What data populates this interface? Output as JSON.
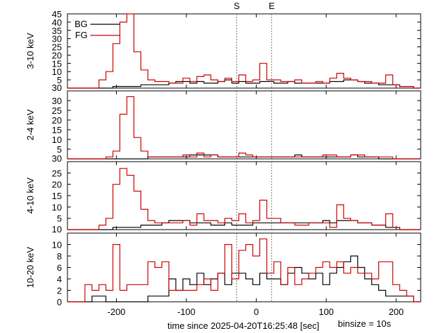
{
  "chart_data": {
    "type": "line",
    "step": true,
    "xlabel": "time since 2025-04-20T16:25:48 [sec]",
    "binsize_label": "binsize = 10s",
    "xlim": [
      -270,
      235
    ],
    "xticks": [
      -200,
      -100,
      0,
      100,
      200
    ],
    "xtick_labels": [
      "-200",
      "-100",
      "0",
      "100",
      "200"
    ],
    "markers": [
      {
        "label": "S",
        "x": -28
      },
      {
        "label": "E",
        "x": 22
      }
    ],
    "bins": [
      -240,
      -230,
      -220,
      -210,
      -200,
      -190,
      -180,
      -170,
      -160,
      -150,
      -140,
      -130,
      -120,
      -110,
      -100,
      -90,
      -80,
      -70,
      -60,
      -50,
      -40,
      -30,
      -20,
      -10,
      0,
      10,
      20,
      30,
      40,
      50,
      60,
      70,
      80,
      90,
      100,
      110,
      120,
      130,
      140,
      150,
      160,
      170,
      180,
      190,
      200,
      210,
      220,
      230
    ],
    "legend": [
      "BG",
      "FG"
    ],
    "colors": {
      "BG": "#000000",
      "FG": "#cc0000"
    },
    "panels": [
      {
        "ylabel": "3-10 keV",
        "ylim": [
          0,
          45
        ],
        "yticks": [
          5,
          10,
          15,
          20,
          25,
          30,
          35,
          40,
          45
        ],
        "ytick_labels": [
          "5",
          "10",
          "15",
          "20",
          "25",
          "30",
          "35",
          "40",
          "45"
        ],
        "bottom_label": "30",
        "show_legend": true,
        "series": [
          {
            "name": "BG",
            "values": [
              0,
              0,
              0,
              0,
              1,
              1,
              1,
              1,
              2,
              2,
              2,
              2,
              3,
              4,
              4,
              3,
              4,
              3,
              3,
              4,
              5,
              3,
              4,
              3,
              3,
              4,
              4,
              3,
              3,
              4,
              3,
              3,
              3,
              3,
              3,
              4,
              4,
              5,
              5,
              4,
              3,
              3,
              2,
              2,
              2,
              1,
              1,
              0
            ]
          },
          {
            "name": "FG",
            "values": [
              0,
              0,
              5,
              10,
              27,
              40,
              48,
              22,
              11,
              5,
              4,
              4,
              3,
              3,
              6,
              4,
              7,
              8,
              5,
              4,
              6,
              4,
              8,
              4,
              5,
              15,
              5,
              5,
              4,
              4,
              5,
              3,
              3,
              4,
              3,
              6,
              9,
              6,
              5,
              4,
              4,
              3,
              3,
              8,
              2,
              1,
              1,
              0
            ]
          }
        ]
      },
      {
        "ylabel": "2-4 keV",
        "ylim": [
          0,
          35
        ],
        "yticks": [
          5,
          10,
          15,
          20,
          25,
          30
        ],
        "ytick_labels": [
          "5",
          "10",
          "15",
          "20",
          "25",
          "30"
        ],
        "bottom_label": "30",
        "show_legend": false,
        "series": [
          {
            "name": "BG",
            "values": [
              0,
              0,
              0,
              0,
              0,
              0,
              0,
              0,
              0,
              1,
              1,
              1,
              1,
              1,
              1,
              2,
              2,
              2,
              2,
              1,
              1,
              1,
              1,
              1,
              1,
              1,
              1,
              1,
              1,
              1,
              2,
              1,
              1,
              1,
              1,
              1,
              1,
              1,
              2,
              1,
              1,
              1,
              0,
              0,
              0,
              0,
              0,
              0
            ]
          },
          {
            "name": "FG",
            "values": [
              0,
              0,
              0,
              1,
              4,
              23,
              32,
              11,
              4,
              1,
              1,
              1,
              1,
              1,
              2,
              1,
              3,
              1,
              2,
              1,
              1,
              1,
              3,
              2,
              1,
              1,
              1,
              1,
              1,
              1,
              1,
              1,
              1,
              1,
              2,
              2,
              1,
              1,
              2,
              2,
              1,
              1,
              1,
              1,
              0,
              0,
              0,
              0
            ]
          }
        ]
      },
      {
        "ylabel": "4-10 keV",
        "ylim": [
          0,
          30
        ],
        "yticks": [
          5,
          10,
          15,
          20,
          25
        ],
        "ytick_labels": [
          "5",
          "10",
          "15",
          "20",
          "25"
        ],
        "bottom_label": "10",
        "show_legend": false,
        "series": [
          {
            "name": "BG",
            "values": [
              0,
              0,
              0,
              0,
              1,
              1,
              1,
              1,
              2,
              2,
              2,
              3,
              4,
              4,
              4,
              3,
              3,
              3,
              2,
              2,
              3,
              2,
              2,
              2,
              3,
              3,
              3,
              3,
              3,
              3,
              3,
              3,
              3,
              3,
              4,
              3,
              4,
              4,
              4,
              3,
              3,
              2,
              2,
              1,
              1,
              0,
              0,
              0
            ]
          },
          {
            "name": "FG",
            "values": [
              0,
              0,
              2,
              5,
              20,
              27,
              24,
              17,
              9,
              4,
              3,
              3,
              3,
              3,
              4,
              2,
              7,
              4,
              4,
              3,
              5,
              4,
              7,
              3,
              4,
              13,
              5,
              5,
              3,
              3,
              2,
              2,
              3,
              3,
              3,
              1,
              11,
              5,
              4,
              3,
              3,
              2,
              2,
              7,
              1,
              0,
              0,
              0
            ]
          }
        ]
      },
      {
        "ylabel": "10-20 keV",
        "ylim": [
          0,
          12
        ],
        "yticks": [
          0,
          2,
          4,
          6,
          8,
          10
        ],
        "ytick_labels": [
          "0",
          "2",
          "4",
          "6",
          "8",
          "10"
        ],
        "bottom_label": "",
        "show_legend": false,
        "series": [
          {
            "name": "BG",
            "values": [
              0,
              1,
              1,
              0,
              0,
              0,
              0,
              0,
              0,
              1,
              1,
              1,
              4,
              2,
              4,
              3,
              5,
              3,
              4,
              5,
              3,
              5,
              5,
              4,
              3,
              5,
              4,
              4,
              3,
              5,
              6,
              5,
              4,
              5,
              3,
              5,
              6,
              7,
              8,
              6,
              4,
              3,
              2,
              1,
              1,
              1,
              1,
              0
            ]
          },
          {
            "name": "FG",
            "values": [
              3,
              2,
              3,
              2,
              10,
              2,
              3,
              3,
              3,
              7,
              6,
              7,
              2,
              2,
              2,
              2,
              3,
              4,
              2,
              5,
              10,
              4,
              9,
              10,
              8,
              11,
              5,
              7,
              3,
              6,
              3,
              4,
              5,
              6,
              7,
              6,
              7,
              5,
              6,
              5,
              5,
              4,
              7,
              7,
              3,
              2,
              1,
              0
            ]
          }
        ]
      }
    ]
  }
}
